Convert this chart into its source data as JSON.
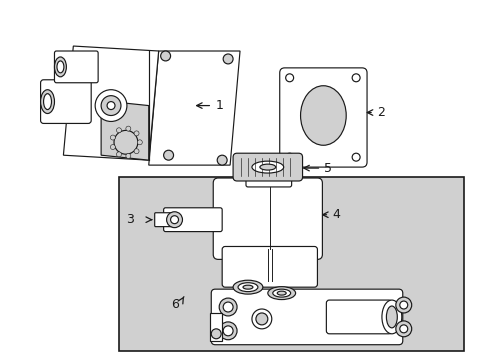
{
  "background_color": "#ffffff",
  "line_color": "#1a1a1a",
  "fill_light": "#d0d0d0",
  "fill_mid": "#b0b0b0",
  "label_1": "1",
  "label_2": "2",
  "label_3": "3",
  "label_4": "4",
  "label_5": "5",
  "label_6": "6",
  "figsize": [
    4.89,
    3.6
  ],
  "dpi": 100
}
